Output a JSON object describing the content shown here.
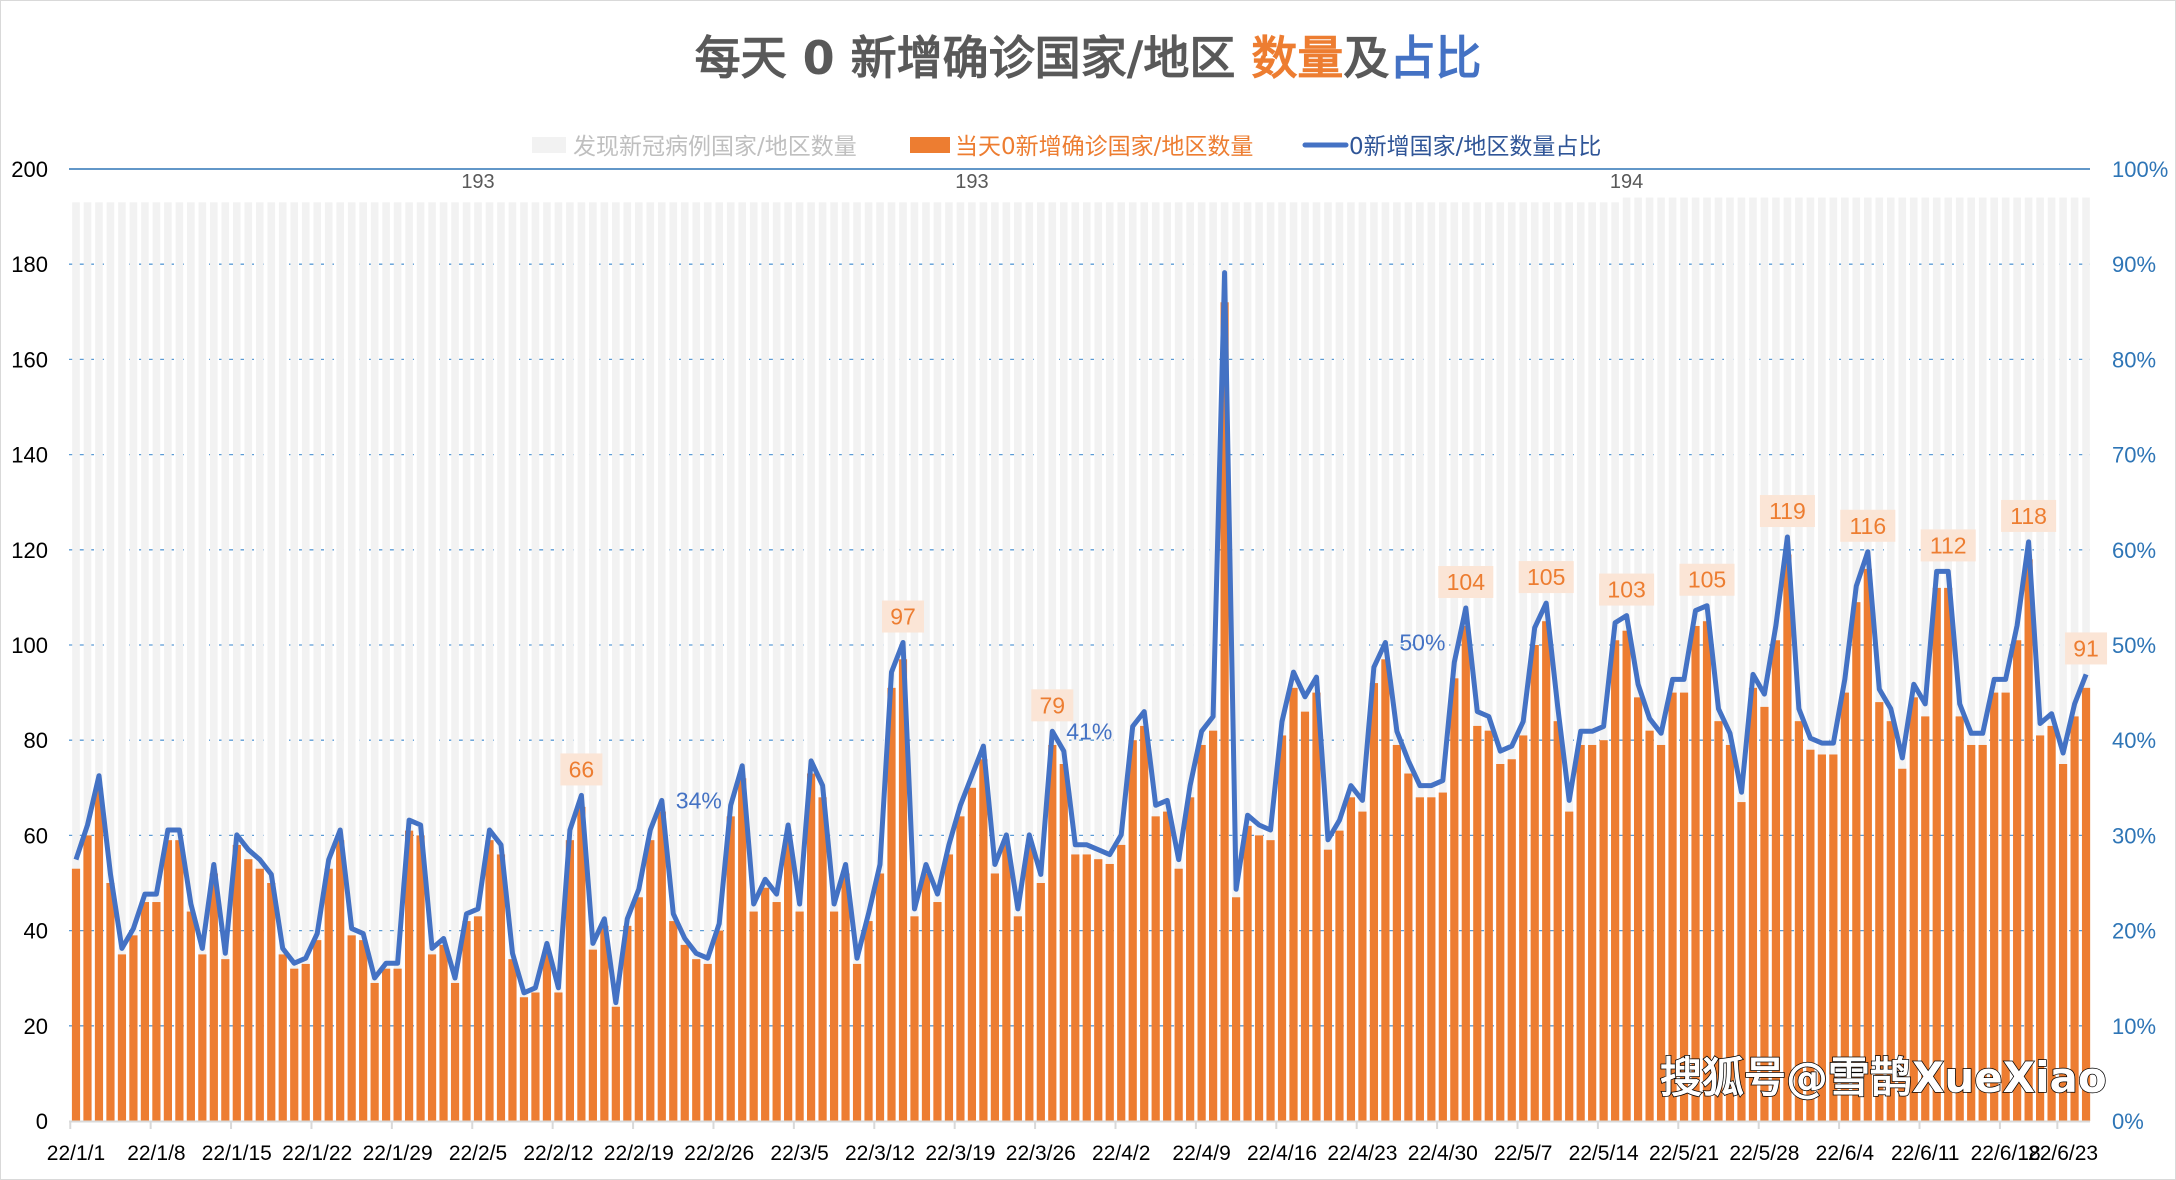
{
  "chart_data": {
    "type": "bar+line",
    "title": {
      "parts": [
        {
          "text": "每天 0 新增确诊国家/地区 ",
          "color": "#595959"
        },
        {
          "text": "数量",
          "color": "#ed7d31"
        },
        {
          "text": "及",
          "color": "#595959"
        },
        {
          "text": "占比",
          "color": "#4472c4"
        }
      ]
    },
    "legend": {
      "placement": "top",
      "items": [
        {
          "label": "发现新冠病例国家/地区数量",
          "color": "#f2f2f2",
          "text_color": "#bfbfbf",
          "kind": "bar"
        },
        {
          "label": "当天0新增确诊国家/地区数量",
          "color": "#ed7d31",
          "text_color": "#ed7d31",
          "kind": "bar"
        },
        {
          "label": "0新增国家/地区数量占比",
          "color": "#4472c4",
          "text_color": "#2f5597",
          "kind": "line"
        }
      ]
    },
    "first_date": "22/1/1",
    "x_tick_labels": [
      "22/1/1",
      "22/1/8",
      "22/1/15",
      "22/1/22",
      "22/1/29",
      "22/2/5",
      "22/2/12",
      "22/2/19",
      "22/2/26",
      "22/3/5",
      "22/3/12",
      "22/3/19",
      "22/3/26",
      "22/4/2",
      "22/4/9",
      "22/4/16",
      "22/4/23",
      "22/4/30",
      "22/5/7",
      "22/5/14",
      "22/5/21",
      "22/5/28",
      "22/6/4",
      "22/6/11",
      "22/6/18",
      "22/6/23"
    ],
    "y_left": {
      "min": 0,
      "max": 200,
      "ticks": [
        "0",
        "20",
        "40",
        "60",
        "80",
        "100",
        "120",
        "140",
        "160",
        "180",
        "200"
      ]
    },
    "y_right": {
      "min": 0,
      "max": 1,
      "ticks": [
        "0%",
        "10%",
        "20%",
        "30%",
        "40%",
        "50%",
        "60%",
        "70%",
        "80%",
        "90%",
        "100%"
      ]
    },
    "grid": true,
    "series": [
      {
        "name": "发现新冠病例国家/地区数量",
        "type": "bar",
        "segments": [
          {
            "start": "22/1/1",
            "value": 193
          },
          {
            "start": "22/5/16",
            "value": 194
          }
        ],
        "labels": [
          {
            "date": "22/2/5",
            "text": "193"
          },
          {
            "date": "22/3/20",
            "text": "193"
          },
          {
            "date": "22/5/16",
            "text": "194"
          }
        ]
      },
      {
        "name": "当天0新增确诊国家/地区数量",
        "type": "bar",
        "values": [
          53,
          60,
          70,
          50,
          35,
          39,
          46,
          46,
          59,
          59,
          44,
          35,
          52,
          34,
          58,
          55,
          53,
          50,
          35,
          32,
          33,
          38,
          53,
          59,
          39,
          38,
          29,
          32,
          32,
          61,
          60,
          35,
          37,
          29,
          42,
          43,
          59,
          56,
          34,
          26,
          27,
          36,
          27,
          59,
          66,
          36,
          41,
          24,
          41,
          47,
          59,
          65,
          42,
          37,
          34,
          33,
          40,
          64,
          72,
          44,
          49,
          46,
          60,
          44,
          73,
          68,
          44,
          52,
          33,
          42,
          52,
          91,
          97,
          43,
          52,
          46,
          56,
          64,
          70,
          76,
          52,
          58,
          43,
          58,
          50,
          79,
          75,
          56,
          56,
          55,
          54,
          58,
          80,
          83,
          64,
          65,
          53,
          68,
          79,
          82,
          172,
          47,
          62,
          60,
          59,
          81,
          91,
          86,
          90,
          57,
          61,
          68,
          65,
          92,
          97,
          79,
          73,
          68,
          68,
          69,
          93,
          104,
          83,
          82,
          75,
          76,
          81,
          100,
          105,
          84,
          65,
          79,
          79,
          80,
          101,
          103,
          89,
          82,
          79,
          90,
          90,
          104,
          105,
          84,
          79,
          67,
          91,
          87,
          101,
          119,
          84,
          78,
          77,
          77,
          90,
          109,
          116,
          88,
          84,
          74,
          89,
          85,
          112,
          112,
          85,
          79,
          79,
          90,
          90,
          101,
          118,
          81,
          83,
          75,
          85,
          91
        ],
        "labels": [
          {
            "date": "22/2/14",
            "text": "66"
          },
          {
            "date": "22/3/14",
            "text": "97"
          },
          {
            "date": "22/3/27",
            "text": "79"
          },
          {
            "date": "22/5/2",
            "text": "104"
          },
          {
            "date": "22/5/9",
            "text": "105"
          },
          {
            "date": "22/5/16",
            "text": "103"
          },
          {
            "date": "22/5/23",
            "text": "105"
          },
          {
            "date": "22/5/30",
            "text": "119"
          },
          {
            "date": "22/6/6",
            "text": "116"
          },
          {
            "date": "22/6/13",
            "text": "112"
          },
          {
            "date": "22/6/20",
            "text": "118"
          },
          {
            "date": "22/6/25",
            "text": "91"
          }
        ]
      },
      {
        "name": "0新增国家/地区数量占比",
        "type": "line",
        "axis": "right",
        "definition": "当天0新增确诊国家/地区数量 / 发现新冠病例国家/地区数量",
        "labels": [
          {
            "date": "22/2/21",
            "text": "34%"
          },
          {
            "date": "22/3/27",
            "text": "41%"
          },
          {
            "date": "22/4/25",
            "text": "50%"
          }
        ]
      }
    ]
  },
  "watermark": "搜狐号@雪鹊XueXiao"
}
